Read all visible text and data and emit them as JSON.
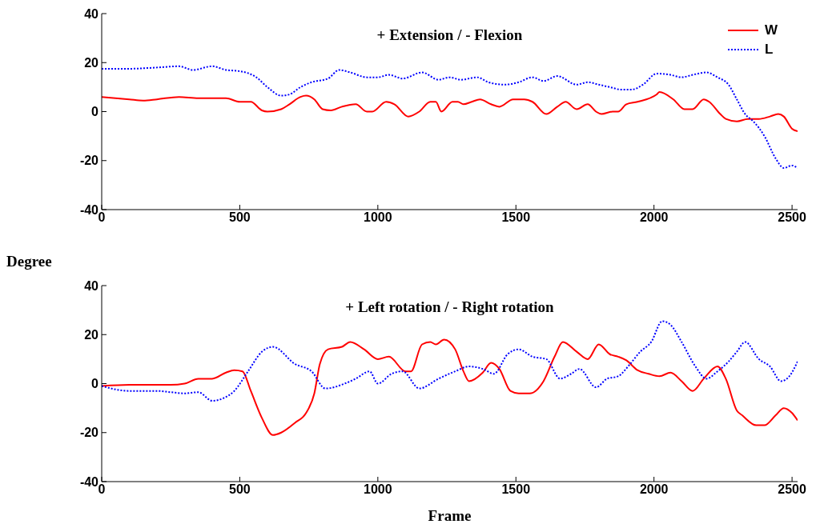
{
  "chart_data": [
    {
      "type": "line",
      "title": "+  Extension / - Flexion",
      "ylabel": "Degree",
      "xlim": [
        0,
        2520
      ],
      "xticks": [
        0,
        500,
        1000,
        1500,
        2000,
        2500
      ],
      "ylim": [
        -40,
        40
      ],
      "yticks": [
        -40,
        -20,
        0,
        20,
        40
      ],
      "grid": false,
      "legend": "top right",
      "series": [
        {
          "name": "W",
          "color": "#ff0000",
          "line_style": "solid",
          "x": [
            0,
            100,
            150,
            200,
            280,
            350,
            450,
            500,
            540,
            580,
            600,
            650,
            680,
            720,
            740,
            770,
            800,
            830,
            870,
            920,
            960,
            980,
            1030,
            1060,
            1110,
            1150,
            1190,
            1210,
            1230,
            1270,
            1290,
            1310,
            1340,
            1370,
            1410,
            1440,
            1490,
            1530,
            1560,
            1610,
            1650,
            1680,
            1720,
            1760,
            1790,
            1810,
            1850,
            1870,
            1900,
            1940,
            2010,
            2020,
            2070,
            2110,
            2140,
            2180,
            2200,
            2240,
            2260,
            2300,
            2340,
            2380,
            2420,
            2450,
            2470,
            2500,
            2520
          ],
          "values": [
            6,
            5,
            4.5,
            5,
            6,
            5.5,
            5.5,
            4,
            4,
            0.5,
            0,
            1,
            3,
            6,
            6.5,
            5,
            1,
            0.5,
            2,
            3,
            0,
            0,
            4,
            3,
            -2,
            0,
            4,
            4,
            0,
            4,
            4,
            3,
            4,
            5,
            3,
            2,
            5,
            5,
            4,
            -1,
            2,
            4,
            1,
            3,
            0,
            -1,
            0,
            0,
            3,
            4,
            7,
            8,
            5,
            1,
            1,
            5,
            4,
            -1,
            -3,
            -4,
            -3,
            -3,
            -2,
            -1,
            -2,
            -7,
            -8
          ]
        },
        {
          "name": "L",
          "color": "#0000ff",
          "line_style": "dotted",
          "x": [
            0,
            100,
            200,
            280,
            330,
            400,
            450,
            500,
            560,
            600,
            650,
            680,
            720,
            760,
            820,
            860,
            900,
            960,
            1000,
            1040,
            1090,
            1160,
            1220,
            1260,
            1300,
            1360,
            1400,
            1460,
            1510,
            1560,
            1600,
            1650,
            1720,
            1760,
            1800,
            1840,
            1880,
            1920,
            1960,
            2010,
            2060,
            2100,
            2140,
            2190,
            2230,
            2270,
            2300,
            2330,
            2360,
            2400,
            2440,
            2470,
            2500,
            2520
          ],
          "values": [
            17.5,
            17.5,
            18,
            18.5,
            17,
            18.5,
            17,
            16.5,
            14,
            10,
            6.5,
            7,
            10,
            12,
            13.5,
            17,
            16,
            14,
            14,
            15,
            13.5,
            16,
            13,
            14,
            13,
            14,
            12,
            11,
            12,
            14,
            12.5,
            14.5,
            11,
            12,
            11,
            10,
            9,
            9,
            11,
            15.5,
            15,
            14,
            15,
            16,
            14,
            11,
            5,
            -1,
            -4,
            -10,
            -19,
            -23,
            -22,
            -23
          ]
        }
      ]
    },
    {
      "type": "line",
      "title": "+ Left rotation / - Right rotation",
      "xlabel": "Frame",
      "xlim": [
        0,
        2520
      ],
      "xticks": [
        0,
        500,
        1000,
        1500,
        2000,
        2500
      ],
      "ylim": [
        -40,
        40
      ],
      "yticks": [
        -40,
        -20,
        0,
        20,
        40
      ],
      "grid": false,
      "legend": false,
      "series": [
        {
          "color": "#ff0000",
          "line_style": "solid",
          "x": [
            0,
            100,
            200,
            250,
            300,
            350,
            400,
            450,
            480,
            510,
            540,
            580,
            620,
            650,
            700,
            740,
            770,
            790,
            820,
            870,
            900,
            950,
            1000,
            1040,
            1100,
            1120,
            1160,
            1190,
            1210,
            1240,
            1280,
            1310,
            1330,
            1380,
            1410,
            1440,
            1480,
            1510,
            1550,
            1600,
            1640,
            1670,
            1720,
            1760,
            1800,
            1840,
            1870,
            1900,
            1940,
            1980,
            2020,
            2060,
            2100,
            2140,
            2180,
            2230,
            2260,
            2300,
            2320,
            2370,
            2400,
            2440,
            2470,
            2500,
            2520
          ],
          "values": [
            -1,
            -0.5,
            -0.5,
            -0.5,
            0,
            2,
            2,
            4.5,
            5.5,
            5,
            -3,
            -14,
            -21,
            -20,
            -16,
            -12,
            -4,
            8,
            14,
            15,
            17,
            14,
            10,
            11,
            5,
            5,
            16,
            17,
            16,
            18,
            14,
            5,
            1,
            4.5,
            8.5,
            6,
            -3,
            -4,
            -4,
            1,
            11,
            17,
            13,
            10,
            16,
            12,
            11,
            9.5,
            5.5,
            4,
            3,
            4.5,
            1,
            -3,
            2,
            7,
            2,
            -11,
            -13,
            -17,
            -17,
            -13,
            -10,
            -12,
            -15
          ]
        },
        {
          "color": "#0000ff",
          "line_style": "dotted",
          "x": [
            0,
            100,
            200,
            250,
            300,
            350,
            400,
            440,
            480,
            530,
            580,
            620,
            700,
            760,
            810,
            880,
            920,
            970,
            1000,
            1050,
            1090,
            1150,
            1220,
            1280,
            1330,
            1380,
            1420,
            1470,
            1510,
            1560,
            1610,
            1660,
            1700,
            1730,
            1790,
            1830,
            1870,
            1910,
            1950,
            1990,
            2030,
            2060,
            2100,
            2150,
            2190,
            2230,
            2270,
            2300,
            2330,
            2380,
            2420,
            2460,
            2490,
            2520
          ],
          "values": [
            -1,
            -3,
            -3,
            -3.5,
            -4,
            -3.5,
            -7,
            -6,
            -3,
            5,
            13,
            15,
            8,
            5,
            -2,
            0,
            2,
            5,
            0,
            4,
            5,
            -2,
            2,
            5,
            7,
            6,
            4,
            12,
            14,
            11,
            10,
            2,
            4,
            6,
            -1.5,
            2,
            3,
            7.5,
            13,
            17,
            25.5,
            24,
            17,
            7,
            2,
            5,
            9,
            13,
            17,
            10,
            7,
            1,
            3,
            9
          ]
        }
      ]
    }
  ]
}
